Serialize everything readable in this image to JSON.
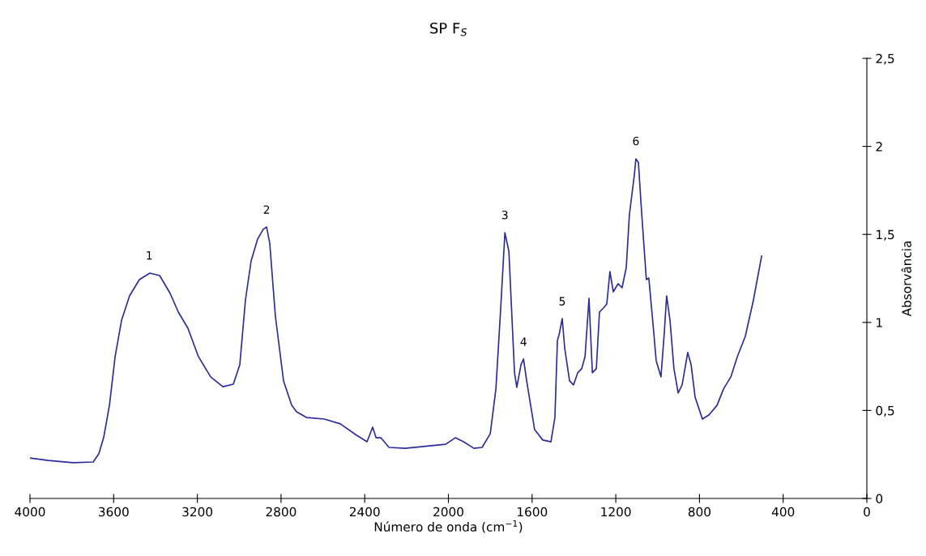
{
  "chart_data": {
    "type": "line",
    "title": "SP F$_{S}$",
    "xlabel": "Número de onda (cm$^{−1}$)",
    "ylabel": "Absorvância",
    "series": [
      {
        "color": "#2b2b9a",
        "x": [
          4000,
          3911,
          3795,
          3698,
          3671,
          3648,
          3620,
          3593,
          3562,
          3524,
          3477,
          3427,
          3380,
          3330,
          3291,
          3245,
          3195,
          3136,
          3078,
          3028,
          2997,
          2970,
          2943,
          2912,
          2885,
          2869,
          2854,
          2827,
          2788,
          2749,
          2726,
          2679,
          2594,
          2517,
          2439,
          2389,
          2362,
          2346,
          2323,
          2284,
          2207,
          2091,
          2013,
          1967,
          1928,
          1878,
          1839,
          1800,
          1773,
          1750,
          1730,
          1711,
          1684,
          1673,
          1653,
          1641,
          1626,
          1588,
          1549,
          1510,
          1491,
          1479,
          1471,
          1456,
          1444,
          1421,
          1402,
          1382,
          1363,
          1347,
          1328,
          1312,
          1293,
          1278,
          1259,
          1243,
          1228,
          1212,
          1189,
          1170,
          1150,
          1135,
          1111,
          1104,
          1092,
          1077,
          1054,
          1042,
          1022,
          1007,
          984,
          968,
          957,
          941,
          922,
          902,
          883,
          856,
          840,
          821,
          786,
          755,
          716,
          685,
          650,
          619,
          581,
          542,
          503
        ],
        "values": [
          0.23,
          0.216,
          0.203,
          0.207,
          0.253,
          0.345,
          0.53,
          0.806,
          1.013,
          1.151,
          1.243,
          1.28,
          1.266,
          1.165,
          1.059,
          0.967,
          0.806,
          0.69,
          0.635,
          0.649,
          0.76,
          1.128,
          1.349,
          1.473,
          1.529,
          1.542,
          1.45,
          1.036,
          0.668,
          0.529,
          0.493,
          0.46,
          0.451,
          0.424,
          0.359,
          0.322,
          0.405,
          0.345,
          0.345,
          0.29,
          0.285,
          0.299,
          0.308,
          0.345,
          0.322,
          0.285,
          0.29,
          0.368,
          0.622,
          1.082,
          1.51,
          1.404,
          0.714,
          0.631,
          0.76,
          0.792,
          0.668,
          0.391,
          0.332,
          0.322,
          0.46,
          0.898,
          0.93,
          1.022,
          0.852,
          0.668,
          0.645,
          0.714,
          0.737,
          0.806,
          1.137,
          0.714,
          0.737,
          1.059,
          1.082,
          1.105,
          1.289,
          1.174,
          1.22,
          1.197,
          1.312,
          1.611,
          1.841,
          1.929,
          1.91,
          1.634,
          1.243,
          1.252,
          0.99,
          0.783,
          0.691,
          0.944,
          1.151,
          1.013,
          0.737,
          0.599,
          0.645,
          0.829,
          0.76,
          0.576,
          0.451,
          0.474,
          0.529,
          0.622,
          0.691,
          0.806,
          0.921,
          1.128,
          1.377
        ]
      }
    ],
    "xlim": [
      4000,
      0
    ],
    "xticks": [
      4000,
      3600,
      3200,
      2800,
      2400,
      2000,
      1600,
      1200,
      800,
      400,
      0
    ],
    "ylim": [
      0,
      2.5
    ],
    "yticks": [
      0,
      {
        "value": 0.5,
        "label": "0,5"
      },
      1,
      {
        "value": 1.5,
        "label": "1,5"
      },
      2,
      {
        "value": 2.5,
        "label": "2,5"
      }
    ],
    "grid": false,
    "legend": false,
    "annotations": [
      {
        "text": "1",
        "x": 3430,
        "y": 1.28
      },
      {
        "text": "2",
        "x": 2869,
        "y": 1.54
      },
      {
        "text": "3",
        "x": 1730,
        "y": 1.51
      },
      {
        "text": "4",
        "x": 1641,
        "y": 0.79
      },
      {
        "text": "5",
        "x": 1456,
        "y": 1.02
      },
      {
        "text": "6",
        "x": 1104,
        "y": 1.93
      }
    ]
  }
}
